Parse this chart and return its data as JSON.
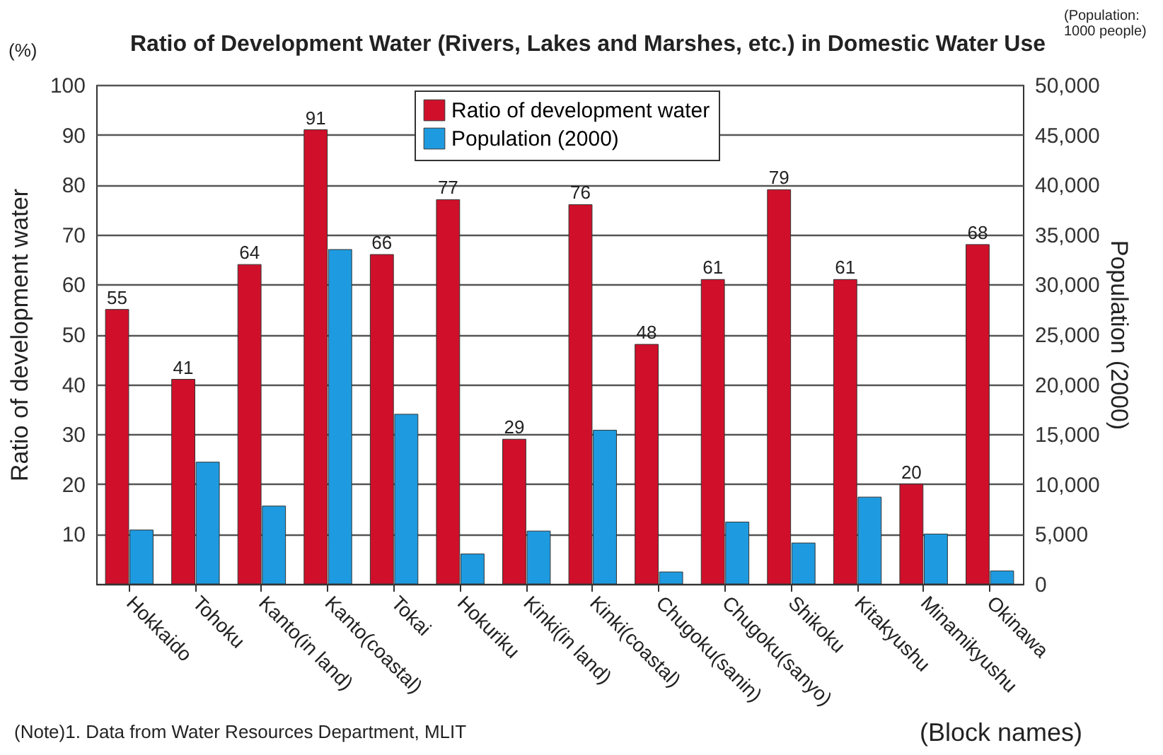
{
  "chart_data": {
    "type": "bar",
    "title": "Ratio of Development Water (Rivers, Lakes and Marshes, etc.) in Domestic Water Use",
    "xlabel": "(Block names)",
    "ylabel": "Ratio of development water",
    "y2label": "Population (2000)",
    "annotations": [
      "(%)",
      "(Population: 1000 people)",
      "(Note)1. Data from Water Resources Department, MLIT"
    ],
    "categories": [
      "Hokkaido",
      "Tohoku",
      "Kanto(in land)",
      "Kanto(coastal)",
      "Tokai",
      "Hokuriku",
      "Kinki(in land)",
      "Kinki(coastal)",
      "Chugoku(sanin)",
      "Chugoku(sanyo)",
      "Shikoku",
      "Kitakyushu",
      "Minamikyushu",
      "Okinawa"
    ],
    "series": [
      {
        "name": "Ratio of development water",
        "color": "#d0102a",
        "values": [
          55,
          41,
          64,
          91,
          66,
          77,
          29,
          76,
          48,
          61,
          79,
          61,
          20,
          68
        ],
        "value_labels": [
          "55",
          "41",
          "64",
          "91",
          "66",
          "77",
          "29",
          "76",
          "48",
          "61",
          "79",
          "61",
          "20",
          "68"
        ]
      },
      {
        "name": "Population (2000)",
        "color": "#1e9be0",
        "axis": "y2",
        "values": [
          5400,
          12200,
          7800,
          33500,
          17000,
          3000,
          5300,
          15400,
          1200,
          6200,
          4100,
          8700,
          5000,
          1300
        ]
      }
    ],
    "ylim": [
      0,
      100
    ],
    "yticks": [
      {
        "value": 0,
        "label": null
      },
      10,
      20,
      30,
      40,
      50,
      60,
      70,
      80,
      90,
      100
    ],
    "y2lim": [
      0,
      50000
    ],
    "y2ticks": [
      0,
      {
        "value": 5000,
        "label": "5,000"
      },
      {
        "value": 10000,
        "label": "10,000"
      },
      {
        "value": 15000,
        "label": "15,000"
      },
      {
        "value": 20000,
        "label": "20,000"
      },
      {
        "value": 25000,
        "label": "25,000"
      },
      {
        "value": 30000,
        "label": "30,000"
      },
      {
        "value": 35000,
        "label": "35,000"
      },
      {
        "value": 40000,
        "label": "40,000"
      },
      {
        "value": 45000,
        "label": "45,000"
      },
      {
        "value": 50000,
        "label": "50,000"
      }
    ],
    "grid": "y",
    "legend": "top"
  }
}
